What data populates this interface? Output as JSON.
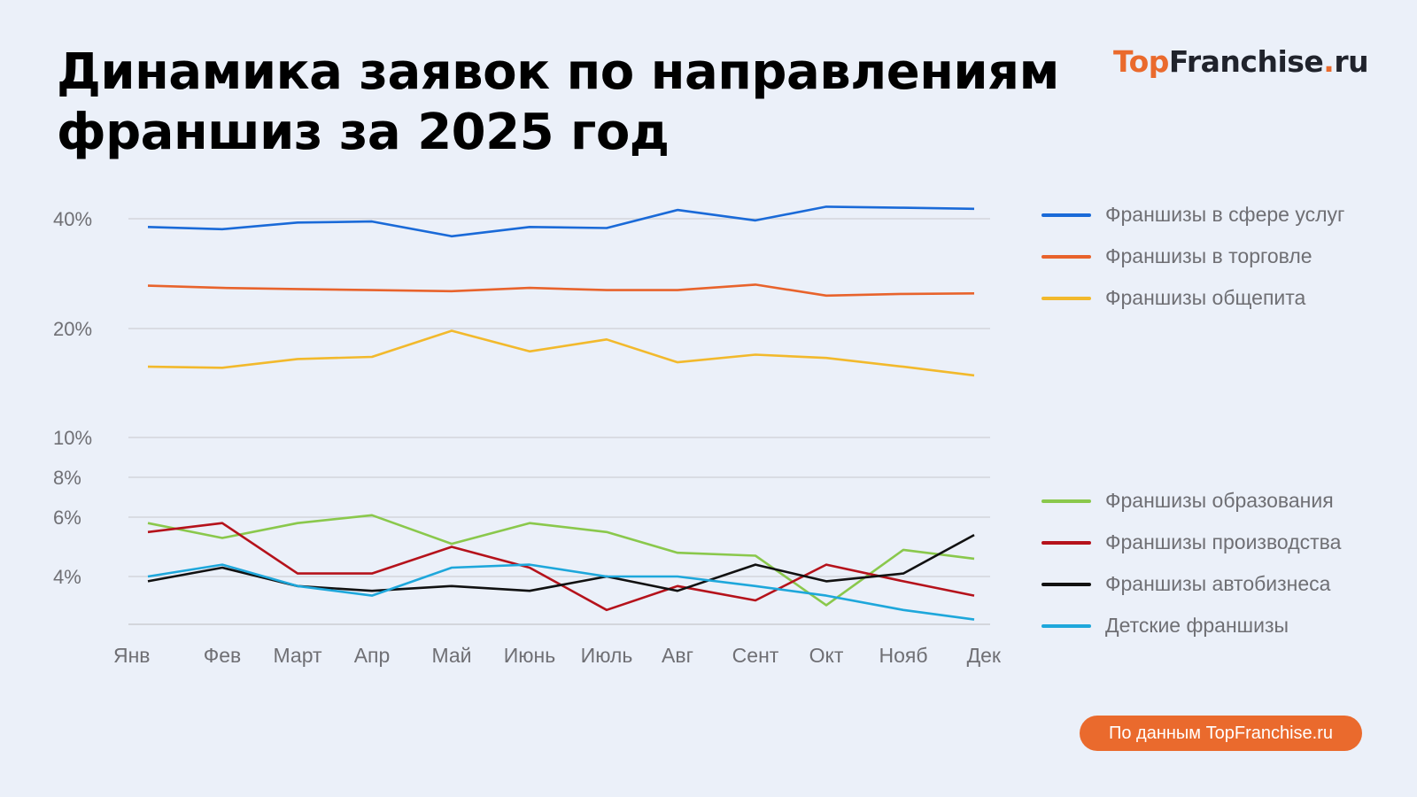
{
  "title": {
    "line1": "Динамика заявок по направлениям",
    "line2": "франшиз за 2025 год"
  },
  "logo": {
    "part1": "Top",
    "part2": "Franchise",
    "part3": ".",
    "part4": "ru"
  },
  "source_badge": "По данным TopFranchise.ru",
  "colors": {
    "background": "#ebf0f9",
    "accent": "#ea6a2d",
    "grid": "#d3d6dc",
    "axis_text": "#6f6f74"
  },
  "chart_data": {
    "type": "line",
    "title": "Динамика заявок по направлениям франшиз за 2025 год",
    "xlabel": "",
    "ylabel": "",
    "y_scale": "non-linear (approx. log)",
    "ylim": [
      3,
      42
    ],
    "grid": true,
    "legend_position": "right",
    "categories": [
      "Янв",
      "Фев",
      "Март",
      "Апр",
      "Май",
      "Июнь",
      "Июль",
      "Авг",
      "Сент",
      "Окт",
      "Нояб",
      "Дек"
    ],
    "yticks": [
      {
        "label": "40%",
        "value": 40
      },
      {
        "label": "20%",
        "value": 20
      },
      {
        "label": "10%",
        "value": 10
      },
      {
        "label": "8%",
        "value": 8
      },
      {
        "label": "6%",
        "value": 6
      },
      {
        "label": "4%",
        "value": 4
      },
      {
        "label": "",
        "value": 3
      }
    ],
    "series": [
      {
        "name": "Франшизы в сфере услуг",
        "color": "#1a6ad8",
        "values": [
          38.5,
          38.1,
          39.3,
          39.5,
          36.8,
          38.5,
          38.3,
          41.6,
          39.7,
          42.2,
          42.0,
          41.8
        ]
      },
      {
        "name": "Франшизы в торговле",
        "color": "#e8632c",
        "values": [
          27.8,
          27.4,
          27.2,
          27.0,
          26.8,
          27.4,
          27.0,
          27.0,
          28.0,
          26.0,
          26.3,
          26.4
        ]
      },
      {
        "name": "Франшизы общепита",
        "color": "#f2b92c",
        "values": [
          16.5,
          16.4,
          17.2,
          17.4,
          19.8,
          17.9,
          19.0,
          16.9,
          17.6,
          17.3,
          16.5,
          15.7
        ]
      },
      {
        "name": "Франшизы образования",
        "color": "#8ac84c",
        "values": [
          5.8,
          5.3,
          5.8,
          6.1,
          5.1,
          5.8,
          5.5,
          4.8,
          4.7,
          3.4,
          4.9,
          4.6
        ]
      },
      {
        "name": "Франшизы производства",
        "color": "#b5121b",
        "values": [
          5.5,
          5.8,
          4.1,
          4.1,
          5.0,
          4.3,
          3.3,
          3.8,
          3.5,
          4.4,
          3.9,
          3.6
        ]
      },
      {
        "name": "Франшизы автобизнеса",
        "color": "#111111",
        "values": [
          3.9,
          4.3,
          3.8,
          3.7,
          3.8,
          3.7,
          4.0,
          3.7,
          4.4,
          3.9,
          4.1,
          5.4
        ]
      },
      {
        "name": "Детские франшизы",
        "color": "#1ea7db",
        "values": [
          4.0,
          4.4,
          3.8,
          3.6,
          4.3,
          4.4,
          4.0,
          4.0,
          3.8,
          3.6,
          3.3,
          3.1
        ]
      }
    ]
  },
  "legend": {
    "group1": [
      {
        "label": "Франшизы в сфере услуг",
        "color": "#1a6ad8"
      },
      {
        "label": "Франшизы в торговле",
        "color": "#e8632c"
      },
      {
        "label": "Франшизы общепита",
        "color": "#f2b92c"
      }
    ],
    "group2": [
      {
        "label": "Франшизы образования",
        "color": "#8ac84c"
      },
      {
        "label": "Франшизы производства",
        "color": "#b5121b"
      },
      {
        "label": "Франшизы автобизнеса",
        "color": "#111111"
      },
      {
        "label": "Детские франшизы",
        "color": "#1ea7db"
      }
    ]
  }
}
